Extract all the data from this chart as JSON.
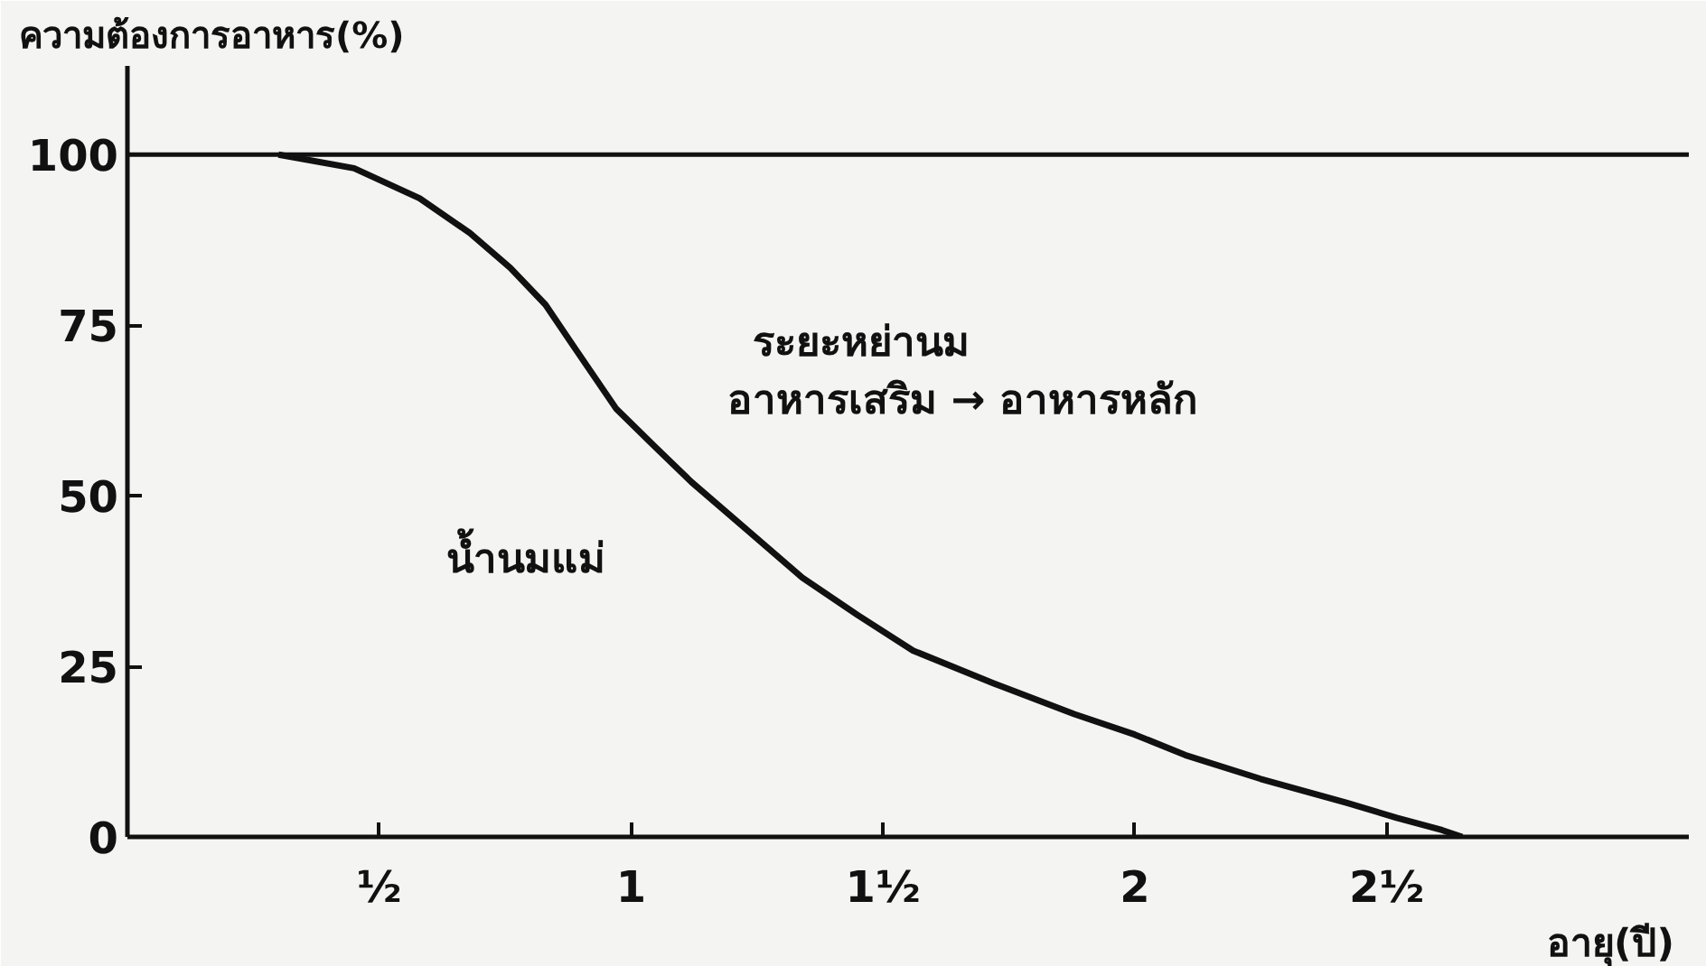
{
  "chart_data": {
    "type": "line",
    "ylabel": "ความต้องการอาหาร(%)",
    "xlabel": "อายุ(ปี)",
    "x": [
      0.3,
      0.45,
      0.58,
      0.68,
      0.76,
      0.83,
      0.885,
      0.97,
      1.05,
      1.12,
      1.23,
      1.34,
      1.45,
      1.56,
      1.72,
      1.88,
      2.0,
      2.1,
      2.25,
      2.42,
      2.52,
      2.61,
      2.65
    ],
    "series": [
      {
        "color": "#111111",
        "values": [
          100,
          98,
          93.6,
          88.5,
          83.4,
          78,
          72,
          62.8,
          57,
          52,
          45,
          38,
          32.5,
          27.3,
          22.5,
          18,
          15,
          12,
          8.5,
          5,
          2.8,
          1,
          0
        ]
      }
    ],
    "xlim": [
      0,
      3.1
    ],
    "ylim": [
      0,
      113
    ],
    "xticks": [
      {
        "value": 0.5,
        "label": "½"
      },
      1,
      {
        "value": 1.5,
        "label": "1½"
      },
      2,
      {
        "value": 2.5,
        "label": "2½"
      }
    ],
    "yticks": [
      0,
      25,
      50,
      75,
      100
    ],
    "ref_lines": [
      {
        "axis": "y",
        "value": 100,
        "label": null,
        "color": "#111111"
      }
    ],
    "annotations": [
      "ระยะหย่านม",
      "อาหารเสริม → อาหารหลัก",
      "น้ำนมแม่"
    ],
    "grid": false,
    "marker": "none",
    "line_style": "solid"
  }
}
